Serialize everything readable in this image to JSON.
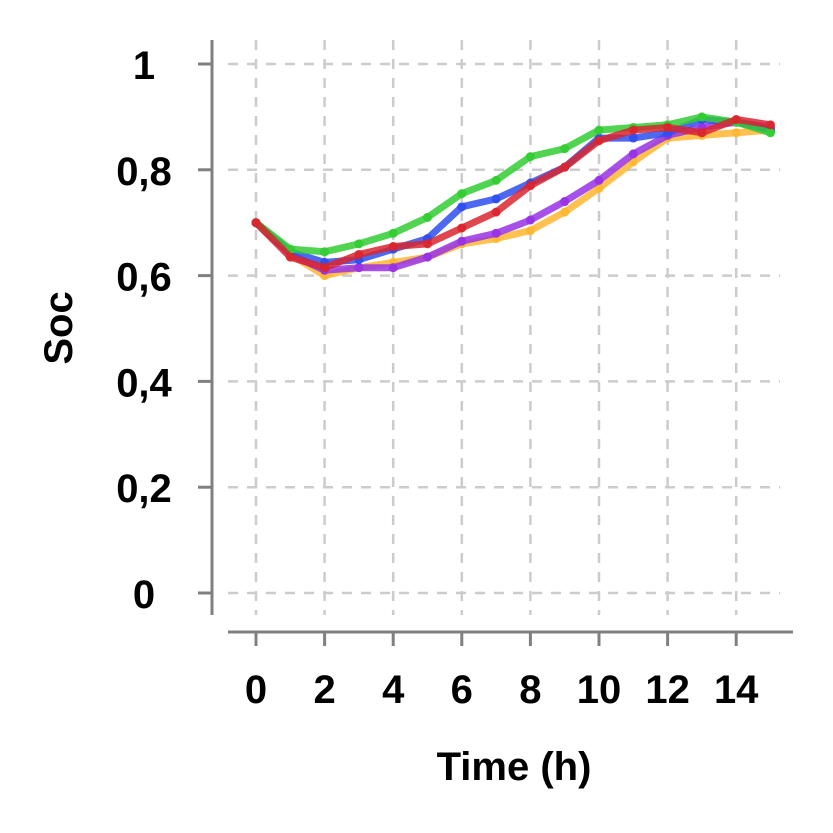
{
  "chart_data": {
    "type": "line",
    "title": "",
    "xlabel": "Time (h)",
    "ylabel": "Soc",
    "xlim": [
      0,
      15
    ],
    "ylim": [
      0,
      1
    ],
    "x_ticks": [
      0,
      2,
      4,
      6,
      8,
      10,
      12,
      14
    ],
    "x_tick_labels": [
      "0",
      "2",
      "4",
      "6",
      "8",
      "10",
      "12",
      "14"
    ],
    "y_ticks": [
      0,
      0.2,
      0.4,
      0.6,
      0.8,
      1
    ],
    "y_tick_labels": [
      "0",
      "0,2",
      "0,4",
      "0,6",
      "0,8",
      "1"
    ],
    "grid": true,
    "legend": false,
    "x": [
      0,
      1,
      2,
      3,
      4,
      5,
      6,
      7,
      8,
      9,
      10,
      11,
      12,
      13,
      14,
      15
    ],
    "series": [
      {
        "color": "#FFB733",
        "values": [
          0.7,
          0.64,
          0.6,
          0.615,
          0.625,
          0.635,
          0.66,
          0.67,
          0.685,
          0.72,
          0.765,
          0.815,
          0.86,
          0.865,
          0.87,
          0.875
        ]
      },
      {
        "color": "#9932E6",
        "values": [
          0.7,
          0.64,
          0.61,
          0.615,
          0.615,
          0.635,
          0.665,
          0.68,
          0.705,
          0.74,
          0.78,
          0.83,
          0.865,
          0.88,
          0.89,
          0.88
        ]
      },
      {
        "color": "#2E4FF0",
        "values": [
          0.7,
          0.645,
          0.625,
          0.63,
          0.65,
          0.67,
          0.73,
          0.745,
          0.775,
          0.805,
          0.86,
          0.86,
          0.87,
          0.895,
          0.89,
          0.875
        ]
      },
      {
        "color": "#33CC33",
        "values": [
          0.7,
          0.65,
          0.645,
          0.66,
          0.68,
          0.71,
          0.755,
          0.78,
          0.825,
          0.84,
          0.875,
          0.88,
          0.885,
          0.9,
          0.89,
          0.87
        ]
      },
      {
        "color": "#D9262E",
        "values": [
          0.7,
          0.635,
          0.615,
          0.64,
          0.655,
          0.66,
          0.69,
          0.72,
          0.77,
          0.805,
          0.855,
          0.875,
          0.88,
          0.87,
          0.895,
          0.885
        ]
      }
    ]
  }
}
